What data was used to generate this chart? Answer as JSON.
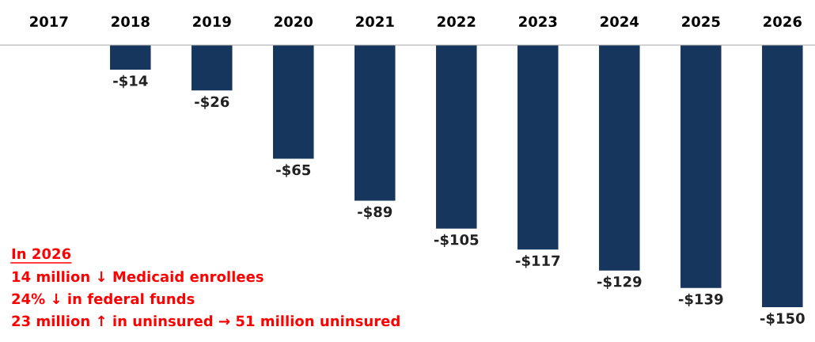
{
  "chart_data": {
    "type": "bar",
    "categories": [
      "2017",
      "2018",
      "2019",
      "2020",
      "2021",
      "2022",
      "2023",
      "2024",
      "2025",
      "2026"
    ],
    "values": [
      null,
      -14,
      -26,
      -65,
      -89,
      -105,
      -117,
      -129,
      -139,
      -150
    ],
    "value_labels": [
      null,
      "-$14",
      "-$26",
      "-$65",
      "-$89",
      "-$105",
      "-$117",
      "-$129",
      "-$139",
      "-$150"
    ],
    "color": "#17365d",
    "annotations": [
      "In 2026",
      "14 million ↓ Medicaid enrollees",
      "24% ↓ in federal funds",
      "23 million ↑ in uninsured → 51 million uninsured"
    ],
    "grid": false,
    "legend": false
  }
}
